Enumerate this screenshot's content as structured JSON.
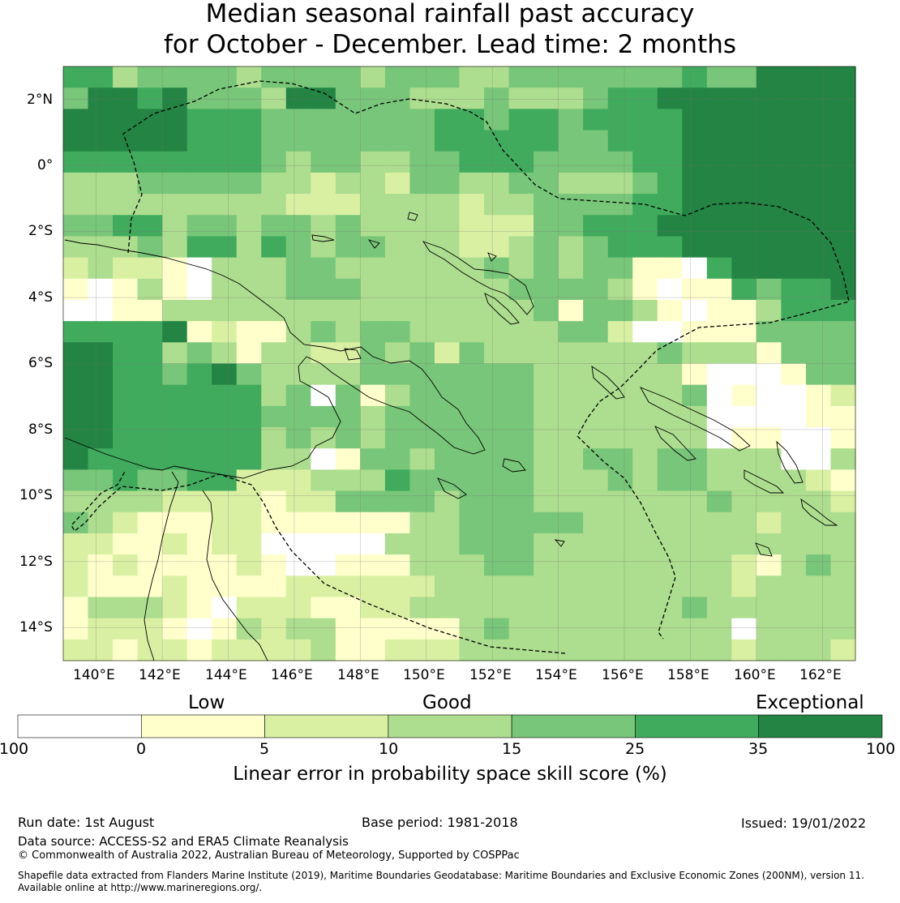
{
  "title": {
    "line1": "Median seasonal rainfall past accuracy",
    "line2": "for October - December. Lead time: 2 months"
  },
  "map": {
    "lon_range": [
      139,
      163
    ],
    "lat_range": [
      -15,
      3
    ],
    "lon_tick_labels": [
      "140°E",
      "142°E",
      "144°E",
      "146°E",
      "148°E",
      "150°E",
      "152°E",
      "154°E",
      "156°E",
      "158°E",
      "160°E",
      "162°E"
    ],
    "lat_tick_labels": [
      "2°N",
      "0°",
      "2°S",
      "4°S",
      "6°S",
      "8°S",
      "10°S",
      "12°S",
      "14°S"
    ],
    "colors": [
      "#ffffff",
      "#ffffcc",
      "#d9f0a3",
      "#addd8e",
      "#78c679",
      "#41ab5d",
      "#238443"
    ],
    "grid_rows": [
      "55344443444434443344444445446666",
      "46656444366444333433345566666666",
      "66666555444444455455455556666666",
      "66666555444444455555445556666666",
      "55555555434433445554444556666666",
      "33344444332332443344333456666666",
      "33333333322233332334444556666666",
      "44553443443433332224455566666666",
      "33343553543443332234345556666666",
      "23221033344333333434344110566666",
      "10131033344433333344443101154556",
      "00113333333333333334144310113555",
      "55556121134344333333442001114444",
      "66553431332243424333333343331444",
      "66554564333344444443333331000144",
      "66555555340413444443333334010012",
      "66555555444434444443333333000011",
      "66555555343434444443333333011001",
      "65555555330144344443344344333003",
      "44544552223335444443334344333321",
      "33332222122444434443333333433332",
      "43211122111111334444433333332333",
      "22112122000003334443333333333333",
      "21211112100111333443333333321343",
      "21112111122222233333333333323333",
      "13332102221122333333333334333333",
      "12221013233111113433333333303333",
      "22122122223112223333333333323332"
    ],
    "legend": {
      "categories": [
        "Low",
        "Good",
        "Exceptional"
      ],
      "ticks": [
        "-100",
        "0",
        "5",
        "10",
        "15",
        "25",
        "35",
        "100"
      ],
      "label": "Linear error in probability space skill score (%)"
    }
  },
  "footer": {
    "run_date": "Run date: 1st August",
    "base_period": "Base period: 1981-2018",
    "issued": "Issued: 19/01/2022",
    "data_source": "Data source: ACCESS-S2 and ERA5 Climate Reanalysis",
    "copyright": "© Commonwealth of Australia 2022, Australian Bureau of Meteorology, Supported by COSPPac",
    "shapefile_1": "Shapefile data extracted from Flanders Marine Institute (2019), Maritime Boundaries Geodatabase: Maritime Boundaries and Exclusive Economic Zones (200NM), version 11.",
    "shapefile_2": "Available online at http://www.marineregions.org/."
  }
}
